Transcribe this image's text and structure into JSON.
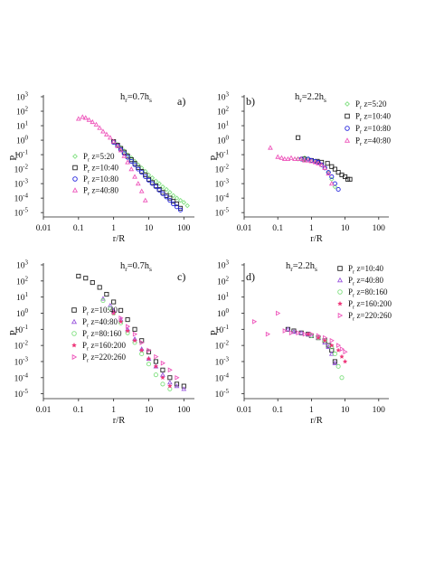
{
  "chart_data": [
    {
      "type": "scatter",
      "panel_label": "a)",
      "header": "h_r=0.7h_s",
      "header_main": "h",
      "header_sub1": "r",
      "header_mid": "=0.7h",
      "header_sub2": "s",
      "xlabel": "r/R",
      "ylabel_main": "P",
      "ylabel_sub": "r",
      "xscale": "log",
      "yscale": "log",
      "xlim": [
        0.01,
        200
      ],
      "ylim": [
        5e-06,
        1000
      ],
      "x_ticks": [
        "0.01",
        "0.1",
        "1",
        "10",
        "100"
      ],
      "y_ticks": [
        {
          "base": "10",
          "exp": "3"
        },
        {
          "base": "10",
          "exp": "2"
        },
        {
          "base": "10",
          "exp": "1"
        },
        {
          "base": "10",
          "exp": "0"
        },
        {
          "base": "10",
          "exp": "-1"
        },
        {
          "base": "10",
          "exp": "-2"
        },
        {
          "base": "10",
          "exp": "-3"
        },
        {
          "base": "10",
          "exp": "-4"
        },
        {
          "base": "10",
          "exp": "-5"
        }
      ],
      "legend_position": "lower-left",
      "series": [
        {
          "name": "P_r z=5:20",
          "name_main": "P",
          "name_sub": "r",
          "name_rest": " z=5:20",
          "marker": "diamond",
          "color": "#7fe07f",
          "x": [
            1,
            1.3,
            1.6,
            2,
            2.5,
            3.2,
            4,
            5,
            6.3,
            8,
            10,
            12.6,
            16,
            20,
            25,
            32,
            40,
            50,
            63,
            80,
            100,
            126
          ],
          "y": [
            0.8,
            0.5,
            0.3,
            0.18,
            0.1,
            0.06,
            0.035,
            0.02,
            0.012,
            0.007,
            0.004,
            0.0025,
            0.0015,
            0.001,
            0.0006,
            0.0004,
            0.00025,
            0.00015,
            0.0001,
            7e-05,
            5e-05,
            3e-05
          ]
        },
        {
          "name": "P_r z=10:40",
          "name_main": "P",
          "name_sub": "r",
          "name_rest": " z=10:40",
          "marker": "square",
          "color": "#222222",
          "x": [
            1,
            1.3,
            1.6,
            2,
            2.5,
            3.2,
            4,
            5,
            6.3,
            8,
            10,
            12.6,
            16,
            20,
            25,
            32,
            40,
            50,
            63,
            80
          ],
          "y": [
            0.8,
            0.45,
            0.27,
            0.15,
            0.08,
            0.045,
            0.025,
            0.013,
            0.007,
            0.004,
            0.002,
            0.0012,
            0.0007,
            0.0004,
            0.00025,
            0.00015,
            0.0001,
            6e-05,
            4e-05,
            2e-05
          ]
        },
        {
          "name": "P_r z=10:80",
          "name_main": "P",
          "name_sub": "r",
          "name_rest": " z=10:80",
          "marker": "circle",
          "color": "#2222dd",
          "x": [
            1,
            1.3,
            1.6,
            2,
            2.5,
            3.2,
            4,
            5,
            6.3,
            8,
            10,
            12.6,
            16,
            20,
            25,
            32,
            40,
            50,
            63,
            80
          ],
          "y": [
            0.7,
            0.4,
            0.22,
            0.12,
            0.065,
            0.035,
            0.02,
            0.01,
            0.006,
            0.003,
            0.0017,
            0.001,
            0.0006,
            0.00035,
            0.0002,
            0.00012,
            7e-05,
            4e-05,
            2.5e-05,
            1.5e-05
          ]
        },
        {
          "name": "P_r z=40:80",
          "name_main": "P",
          "name_sub": "r",
          "name_rest": " z=40:80",
          "marker": "triangle",
          "color": "#ee55bb",
          "x": [
            0.1,
            0.13,
            0.16,
            0.2,
            0.25,
            0.32,
            0.4,
            0.5,
            0.63,
            0.8,
            1,
            1.3,
            1.6,
            2,
            2.5,
            3.2,
            4,
            5,
            6.3,
            8
          ],
          "y": [
            30,
            40,
            35,
            25,
            18,
            12,
            7,
            4,
            2.5,
            1.5,
            0.8,
            0.4,
            0.2,
            0.08,
            0.03,
            0.01,
            0.003,
            0.001,
            0.0003,
            7e-05
          ]
        }
      ]
    },
    {
      "type": "scatter",
      "panel_label": "b)",
      "header": "h_r=2.2h_s",
      "header_main": "h",
      "header_sub1": "r",
      "header_mid": "=2.2h",
      "header_sub2": "s",
      "xlabel": "r/R",
      "ylabel_main": "P",
      "ylabel_sub": "r",
      "xscale": "log",
      "yscale": "log",
      "xlim": [
        0.01,
        200
      ],
      "ylim": [
        5e-06,
        1000
      ],
      "x_ticks": [
        "0.01",
        "0.1",
        "1",
        "10",
        "100"
      ],
      "y_ticks": [
        {
          "base": "10",
          "exp": "3"
        },
        {
          "base": "10",
          "exp": "2"
        },
        {
          "base": "10",
          "exp": "1"
        },
        {
          "base": "10",
          "exp": "0"
        },
        {
          "base": "10",
          "exp": "-1"
        },
        {
          "base": "10",
          "exp": "-2"
        },
        {
          "base": "10",
          "exp": "-3"
        },
        {
          "base": "10",
          "exp": "-4"
        },
        {
          "base": "10",
          "exp": "-5"
        }
      ],
      "legend_position": "top-right",
      "series": [
        {
          "name": "P_r z=5:20",
          "name_main": "P",
          "name_sub": "r",
          "name_rest": " z=5:20",
          "marker": "diamond",
          "color": "#7fe07f",
          "x": [
            0.4,
            0.5,
            0.63,
            0.8,
            1,
            1.3,
            1.6,
            2,
            2.5,
            3.2,
            4,
            5
          ],
          "y": [
            0.05,
            0.05,
            0.06,
            0.05,
            0.04,
            0.035,
            0.03,
            0.02,
            0.012,
            0.006,
            0.002,
            0.0006
          ]
        },
        {
          "name": "P_r z=10:40",
          "name_main": "P",
          "name_sub": "r",
          "name_rest": " z=10:40",
          "marker": "square",
          "color": "#222222",
          "x": [
            0.4,
            0.6,
            1,
            1.5,
            2,
            3,
            4,
            5,
            6.3,
            8,
            10,
            12,
            14
          ],
          "y": [
            1.5,
            0.05,
            0.04,
            0.035,
            0.03,
            0.025,
            0.015,
            0.01,
            0.006,
            0.004,
            0.003,
            0.002,
            0.002
          ]
        },
        {
          "name": "P_r z=10:80",
          "name_main": "P",
          "name_sub": "r",
          "name_rest": " z=10:80",
          "marker": "circle",
          "color": "#2222dd",
          "x": [
            0.5,
            0.8,
            1,
            1.3,
            1.6,
            2,
            2.5,
            3.2,
            4,
            5,
            6.3
          ],
          "y": [
            0.05,
            0.05,
            0.04,
            0.035,
            0.03,
            0.02,
            0.012,
            0.006,
            0.003,
            0.001,
            0.0004
          ]
        },
        {
          "name": "P_r z=40:80",
          "name_main": "P",
          "name_sub": "r",
          "name_rest": " z=40:80",
          "marker": "triangle",
          "color": "#ee55bb",
          "x": [
            0.06,
            0.1,
            0.13,
            0.16,
            0.2,
            0.25,
            0.32,
            0.4,
            0.5,
            0.63,
            0.8,
            1,
            1.3,
            1.6,
            2,
            2.5,
            3.2,
            4
          ],
          "y": [
            0.3,
            0.07,
            0.06,
            0.05,
            0.05,
            0.06,
            0.05,
            0.05,
            0.05,
            0.04,
            0.04,
            0.035,
            0.03,
            0.025,
            0.02,
            0.012,
            0.005,
            0.001
          ]
        }
      ]
    },
    {
      "type": "scatter",
      "panel_label": "c)",
      "header": "h_r=0.7h_s",
      "header_main": "h",
      "header_sub1": "r",
      "header_mid": "=0.7h",
      "header_sub2": "s",
      "xlabel": "r/R",
      "ylabel_main": "P",
      "ylabel_sub": "r",
      "xscale": "log",
      "yscale": "log",
      "xlim": [
        0.01,
        200
      ],
      "ylim": [
        5e-06,
        1000
      ],
      "x_ticks": [
        "0.01",
        "0.1",
        "1",
        "10",
        "100"
      ],
      "y_ticks": [
        {
          "base": "10",
          "exp": "3"
        },
        {
          "base": "10",
          "exp": "2"
        },
        {
          "base": "10",
          "exp": "1"
        },
        {
          "base": "10",
          "exp": "0"
        },
        {
          "base": "10",
          "exp": "-1"
        },
        {
          "base": "10",
          "exp": "-2"
        },
        {
          "base": "10",
          "exp": "-3"
        },
        {
          "base": "10",
          "exp": "-4"
        },
        {
          "base": "10",
          "exp": "-5"
        }
      ],
      "legend_position": "lower-left",
      "series": [
        {
          "name": "P_r z=10:40",
          "name_main": "P",
          "name_sub": "r",
          "name_rest": " z=10:40",
          "marker": "square",
          "color": "#222222",
          "x": [
            0.1,
            0.16,
            0.25,
            0.4,
            0.63,
            1,
            1.6,
            2.5,
            4,
            6.3,
            10,
            16,
            25,
            40,
            63,
            100
          ],
          "y": [
            200,
            150,
            80,
            40,
            15,
            5,
            1.5,
            0.4,
            0.1,
            0.02,
            0.004,
            0.001,
            0.0003,
            0.0001,
            4e-05,
            3e-05
          ]
        },
        {
          "name": "P_r z=40:80",
          "name_main": "P",
          "name_sub": "r",
          "name_rest": " z=40:80",
          "marker": "triangle",
          "color": "#9955dd",
          "x": [
            0.5,
            0.8,
            1,
            1.6,
            2.5,
            4,
            6.3,
            10,
            16,
            25,
            40,
            63,
            100
          ],
          "y": [
            8,
            3,
            1.5,
            0.4,
            0.1,
            0.025,
            0.006,
            0.0015,
            0.0005,
            0.00015,
            5e-05,
            3e-05,
            2e-05
          ]
        },
        {
          "name": "P_r z=80:160",
          "name_main": "P",
          "name_sub": "r",
          "name_rest": " z=80:160",
          "marker": "circle",
          "color": "#7fe07f",
          "x": [
            0.5,
            0.8,
            1,
            1.6,
            2.5,
            4,
            6.3,
            10,
            16,
            25,
            40
          ],
          "y": [
            6,
            2,
            1,
            0.25,
            0.06,
            0.015,
            0.003,
            0.0007,
            0.00015,
            4e-05,
            2e-05
          ]
        },
        {
          "name": "P_r z=160:200",
          "name_main": "P",
          "name_sub": "r",
          "name_rest": " z=160:200",
          "marker": "star",
          "color": "#ee3377",
          "x": [
            1,
            1.6,
            2.5,
            4,
            6.3,
            10,
            16,
            25,
            40
          ],
          "y": [
            1,
            0.3,
            0.08,
            0.02,
            0.005,
            0.0015,
            0.0005,
            0.0001,
            3e-05
          ]
        },
        {
          "name": "P_r z=220:260",
          "name_main": "P",
          "name_sub": "r",
          "name_rest": " z=220:260",
          "marker": "triangle-right",
          "color": "#ee55bb",
          "x": [
            1,
            1.6,
            2.5,
            4,
            6.3,
            10,
            16,
            25,
            40,
            63
          ],
          "y": [
            1.2,
            0.5,
            0.15,
            0.05,
            0.015,
            0.005,
            0.002,
            0.0008,
            0.0003,
            0.0001
          ]
        }
      ]
    },
    {
      "type": "scatter",
      "panel_label": "d)",
      "header": "h_r=2.2h_s",
      "header_main": "h",
      "header_sub1": "r",
      "header_mid": "=2.2h",
      "header_sub2": "s",
      "xlabel": "r/R",
      "ylabel_main": "P",
      "ylabel_sub": "r",
      "xscale": "log",
      "yscale": "log",
      "xlim": [
        0.01,
        200
      ],
      "ylim": [
        5e-06,
        1000
      ],
      "x_ticks": [
        "0.01",
        "0.1",
        "1",
        "10",
        "100"
      ],
      "y_ticks": [
        {
          "base": "10",
          "exp": "3"
        },
        {
          "base": "10",
          "exp": "2"
        },
        {
          "base": "10",
          "exp": "1"
        },
        {
          "base": "10",
          "exp": "0"
        },
        {
          "base": "10",
          "exp": "-1"
        },
        {
          "base": "10",
          "exp": "-2"
        },
        {
          "base": "10",
          "exp": "-3"
        },
        {
          "base": "10",
          "exp": "-4"
        },
        {
          "base": "10",
          "exp": "-5"
        }
      ],
      "legend_position": "top-right",
      "series": [
        {
          "name": "P_r z=10:40",
          "name_main": "P",
          "name_sub": "r",
          "name_rest": " z=10:40",
          "marker": "square",
          "color": "#222222",
          "x": [
            0.2,
            0.3,
            0.5,
            0.8,
            1,
            1.6,
            2.5,
            3.2,
            4,
            5
          ],
          "y": [
            0.1,
            0.08,
            0.06,
            0.05,
            0.04,
            0.03,
            0.02,
            0.01,
            0.005,
            0.001
          ]
        },
        {
          "name": "P_r z=40:80",
          "name_main": "P",
          "name_sub": "r",
          "name_rest": " z=40:80",
          "marker": "triangle",
          "color": "#9955dd",
          "x": [
            0.2,
            0.3,
            0.5,
            0.8,
            1,
            1.6,
            2.5,
            3.2,
            4,
            5
          ],
          "y": [
            0.1,
            0.07,
            0.06,
            0.05,
            0.04,
            0.03,
            0.015,
            0.008,
            0.003,
            0.0008
          ]
        },
        {
          "name": "P_r z=80:160",
          "name_main": "P",
          "name_sub": "r",
          "name_rest": " z=80:160",
          "marker": "circle",
          "color": "#7fe07f",
          "x": [
            1,
            1.6,
            2.5,
            4,
            5,
            6.3,
            8
          ],
          "y": [
            0.04,
            0.03,
            0.02,
            0.008,
            0.003,
            0.0005,
            0.0001
          ]
        },
        {
          "name": "P_r z=160:200",
          "name_main": "P",
          "name_sub": "r",
          "name_rest": " z=160:200",
          "marker": "star",
          "color": "#ee3377",
          "x": [
            0.8,
            1.6,
            2.5,
            4,
            6.3,
            8,
            10
          ],
          "y": [
            0.05,
            0.03,
            0.02,
            0.01,
            0.005,
            0.002,
            0.001
          ]
        },
        {
          "name": "P_r z=220:260",
          "name_main": "P",
          "name_sub": "r",
          "name_rest": " z=220:260",
          "marker": "triangle-right",
          "color": "#ee55bb",
          "x": [
            0.02,
            0.05,
            0.1,
            0.16,
            0.25,
            0.4,
            0.63,
            1,
            1.6,
            2.5,
            4,
            6.3,
            8,
            10
          ],
          "y": [
            0.3,
            0.05,
            1,
            0.08,
            0.06,
            0.06,
            0.05,
            0.05,
            0.04,
            0.03,
            0.02,
            0.01,
            0.006,
            0.004
          ]
        }
      ]
    }
  ]
}
